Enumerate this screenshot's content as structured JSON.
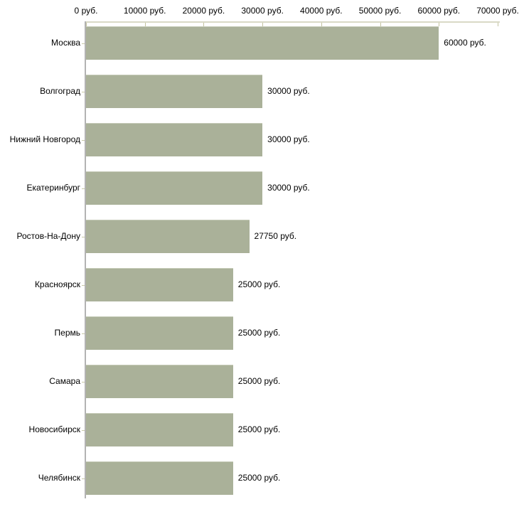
{
  "chart_data": {
    "type": "bar",
    "orientation": "horizontal",
    "title": "",
    "categories": [
      "Москва",
      "Волгоград",
      "Нижний Новгород",
      "Екатеринбург",
      "Ростов-На-Дону",
      "Красноярск",
      "Пермь",
      "Самара",
      "Новосибирск",
      "Челябинск"
    ],
    "values": [
      60000,
      30000,
      30000,
      30000,
      27750,
      25000,
      25000,
      25000,
      25000,
      25000
    ],
    "value_labels": [
      "60000 руб.",
      "30000 руб.",
      "30000 руб.",
      "30000 руб.",
      "27750 руб.",
      "25000 руб.",
      "25000 руб.",
      "25000 руб.",
      "25000 руб.",
      "25000 руб."
    ],
    "x_axis": {
      "position": "top",
      "min": 0,
      "max": 70000,
      "ticks": [
        0,
        10000,
        20000,
        30000,
        40000,
        50000,
        60000,
        70000
      ],
      "tick_labels": [
        "0 руб.",
        "10000 руб.",
        "20000 руб.",
        "30000 руб.",
        "40000 руб.",
        "50000 руб.",
        "60000 руб.",
        "70000 руб."
      ]
    },
    "grid": false,
    "legend": false,
    "colors": {
      "bar": "#aab199",
      "bar_top_edge": "#c6cbb8",
      "x_axis_line": "#d9d9c6",
      "x_tick": "#c3c3a0",
      "y_axis_line": "#b3b3b3",
      "category_tick": "#c9c9a8",
      "text": "#000000",
      "background": "#ffffff"
    }
  }
}
